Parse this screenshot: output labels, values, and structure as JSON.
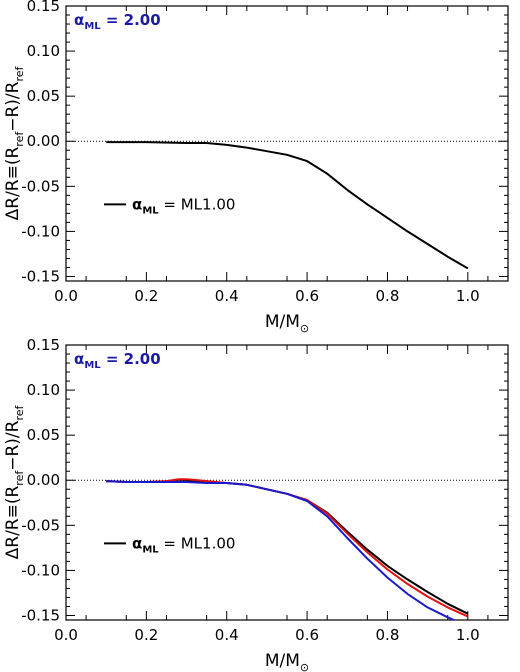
{
  "chart_data": [
    {
      "type": "line",
      "xlabel": "M/M",
      "xlabel_sub": "⊙",
      "ylabel_parts": [
        "ΔR/R≡(R",
        "ref",
        "−R)/R",
        "ref"
      ],
      "xlim": [
        0.0,
        1.1
      ],
      "ylim": [
        -0.155,
        0.15
      ],
      "xticks": [
        "0.0",
        "0.2",
        "0.4",
        "0.6",
        "0.8",
        "1.0"
      ],
      "xtick_values": [
        0.0,
        0.2,
        0.4,
        0.6,
        0.8,
        1.0
      ],
      "yticks": [
        "0.15",
        "0.10",
        "0.05",
        "0.00",
        "-0.05",
        "-0.10",
        "-0.15"
      ],
      "ytick_values": [
        0.15,
        0.1,
        0.05,
        0.0,
        -0.05,
        -0.1,
        -0.15
      ],
      "zero_line": "dotted",
      "annotation_top": {
        "symbol": "α",
        "sub": "ML",
        "text": " = 2.00",
        "color": "#1a1aa6"
      },
      "legend": {
        "symbol": "α",
        "sub": "ML",
        "text": " = ML1.00",
        "placement": "left"
      },
      "series": [
        {
          "color": "#000000",
          "x": [
            0.1,
            0.2,
            0.3,
            0.35,
            0.4,
            0.45,
            0.5,
            0.55,
            0.6,
            0.65,
            0.7,
            0.75,
            0.8,
            0.85,
            0.9,
            0.95,
            1.0
          ],
          "y": [
            -0.001,
            -0.001,
            -0.002,
            -0.002,
            -0.004,
            -0.007,
            -0.011,
            -0.015,
            -0.022,
            -0.036,
            -0.054,
            -0.07,
            -0.085,
            -0.1,
            -0.114,
            -0.128,
            -0.141
          ]
        }
      ]
    },
    {
      "type": "line",
      "xlabel": "M/M",
      "xlabel_sub": "⊙",
      "ylabel_parts": [
        "ΔR/R≡(R",
        "ref",
        "−R)/R",
        "ref"
      ],
      "xlim": [
        0.0,
        1.1
      ],
      "ylim": [
        -0.155,
        0.15
      ],
      "xticks": [
        "0.0",
        "0.2",
        "0.4",
        "0.6",
        "0.8",
        "1.0"
      ],
      "xtick_values": [
        0.0,
        0.2,
        0.4,
        0.6,
        0.8,
        1.0
      ],
      "yticks": [
        "0.15",
        "0.10",
        "0.05",
        "0.00",
        "-0.05",
        "-0.10",
        "-0.15"
      ],
      "ytick_values": [
        0.15,
        0.1,
        0.05,
        0.0,
        -0.05,
        -0.1,
        -0.15
      ],
      "zero_line": "dotted",
      "annotation_top": {
        "symbol": "α",
        "sub": "ML",
        "text": " = 2.00",
        "color": "#1a1aa6"
      },
      "legend": {
        "symbol": "α",
        "sub": "ML",
        "text": " = ML1.00",
        "placement": "left"
      },
      "series": [
        {
          "color": "#000000",
          "x": [
            0.1,
            0.15,
            0.2,
            0.25,
            0.3,
            0.35,
            0.4,
            0.45,
            0.5,
            0.55,
            0.6,
            0.65,
            0.7,
            0.75,
            0.8,
            0.85,
            0.9,
            0.95,
            1.0
          ],
          "y": [
            -0.001,
            -0.002,
            -0.002,
            -0.002,
            -0.001,
            -0.002,
            -0.003,
            -0.005,
            -0.01,
            -0.015,
            -0.022,
            -0.036,
            -0.057,
            -0.077,
            -0.095,
            -0.11,
            -0.124,
            -0.137,
            -0.148
          ]
        },
        {
          "color": "#e01010",
          "x": [
            0.1,
            0.15,
            0.2,
            0.25,
            0.28,
            0.3,
            0.33,
            0.35,
            0.4,
            0.45,
            0.5,
            0.55,
            0.6,
            0.65,
            0.7,
            0.75,
            0.8,
            0.85,
            0.9,
            0.95,
            1.0
          ],
          "y": [
            -0.001,
            -0.002,
            -0.002,
            -0.001,
            0.001,
            0.001,
            0.0,
            -0.001,
            -0.003,
            -0.005,
            -0.01,
            -0.015,
            -0.022,
            -0.037,
            -0.059,
            -0.08,
            -0.099,
            -0.115,
            -0.129,
            -0.141,
            -0.151
          ]
        },
        {
          "color": "#1a1acc",
          "x": [
            0.1,
            0.15,
            0.2,
            0.25,
            0.3,
            0.35,
            0.4,
            0.45,
            0.5,
            0.55,
            0.6,
            0.65,
            0.7,
            0.75,
            0.8,
            0.85,
            0.9,
            0.95,
            0.965
          ],
          "y": [
            -0.001,
            -0.002,
            -0.002,
            -0.002,
            -0.002,
            -0.003,
            -0.003,
            -0.005,
            -0.01,
            -0.015,
            -0.023,
            -0.04,
            -0.064,
            -0.087,
            -0.108,
            -0.126,
            -0.141,
            -0.152,
            -0.155
          ]
        }
      ]
    }
  ]
}
